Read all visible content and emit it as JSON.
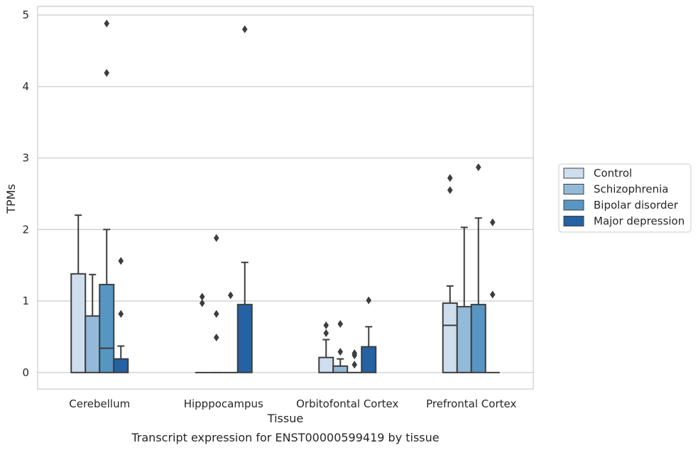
{
  "chart_data": {
    "type": "box",
    "caption": "Transcript expression for ENST00000599419 by tissue",
    "xlabel": "Tissue",
    "ylabel": "TPMs",
    "ylim": [
      -0.23,
      5.12
    ],
    "yticks": [
      "0",
      "1",
      "2",
      "3",
      "4",
      "5"
    ],
    "grid": "horizontal",
    "legend_position": "right",
    "categories": [
      "Cerebellum",
      "Hipppocampus",
      "Orbitofontal Cortex",
      "Prefrontal Cortex"
    ],
    "series": [
      {
        "name": "Control",
        "color": "#cfdeee",
        "boxes": [
          {
            "q1": 0,
            "median": 0,
            "q3": 1.38,
            "whisker_low": 0,
            "whisker_high": 2.2,
            "outliers": []
          },
          {
            "q1": 0,
            "median": 0,
            "q3": 0,
            "whisker_low": 0,
            "whisker_high": 0,
            "outliers": [
              0.97,
              1.06
            ]
          },
          {
            "q1": 0,
            "median": 0,
            "q3": 0.21,
            "whisker_low": 0,
            "whisker_high": 0.46,
            "outliers": [
              0.55,
              0.66
            ]
          },
          {
            "q1": 0,
            "median": 0.66,
            "q3": 0.97,
            "whisker_low": 0,
            "whisker_high": 1.21,
            "outliers": [
              2.55,
              2.72
            ]
          }
        ]
      },
      {
        "name": "Schizophrenia",
        "color": "#93bbd9",
        "boxes": [
          {
            "q1": 0,
            "median": 0,
            "q3": 0.79,
            "whisker_low": 0,
            "whisker_high": 1.37,
            "outliers": []
          },
          {
            "q1": 0,
            "median": 0,
            "q3": 0,
            "whisker_low": 0,
            "whisker_high": 0,
            "outliers": [
              0.49,
              0.82,
              1.88
            ]
          },
          {
            "q1": 0,
            "median": 0,
            "q3": 0.09,
            "whisker_low": 0,
            "whisker_high": 0.19,
            "outliers": [
              0.29,
              0.68
            ]
          },
          {
            "q1": 0,
            "median": 0,
            "q3": 0.92,
            "whisker_low": 0,
            "whisker_high": 2.03,
            "outliers": []
          }
        ]
      },
      {
        "name": "Bipolar disorder",
        "color": "#5796c3",
        "boxes": [
          {
            "q1": 0,
            "median": 0.34,
            "q3": 1.23,
            "whisker_low": 0,
            "whisker_high": 2.0,
            "outliers": [
              4.19,
              4.88
            ]
          },
          {
            "q1": 0,
            "median": 0,
            "q3": 0,
            "whisker_low": 0,
            "whisker_high": 0,
            "outliers": [
              1.08
            ]
          },
          {
            "q1": 0,
            "median": 0,
            "q3": 0,
            "whisker_low": 0,
            "whisker_high": 0,
            "outliers": [
              0.11,
              0.24,
              0.27
            ]
          },
          {
            "q1": 0,
            "median": 0,
            "q3": 0.95,
            "whisker_low": 0,
            "whisker_high": 2.16,
            "outliers": [
              2.87
            ]
          }
        ]
      },
      {
        "name": "Major depression",
        "color": "#2462a4",
        "boxes": [
          {
            "q1": 0,
            "median": 0,
            "q3": 0.19,
            "whisker_low": 0,
            "whisker_high": 0.37,
            "outliers": [
              0.82,
              1.56
            ]
          },
          {
            "q1": 0,
            "median": 0,
            "q3": 0.95,
            "whisker_low": 0,
            "whisker_high": 1.54,
            "outliers": [
              4.8
            ]
          },
          {
            "q1": 0,
            "median": 0,
            "q3": 0.36,
            "whisker_low": 0,
            "whisker_high": 0.64,
            "outliers": [
              1.01
            ]
          },
          {
            "q1": 0,
            "median": 0,
            "q3": 0,
            "whisker_low": 0,
            "whisker_high": 0,
            "outliers": [
              1.09,
              2.1
            ]
          }
        ]
      }
    ]
  }
}
